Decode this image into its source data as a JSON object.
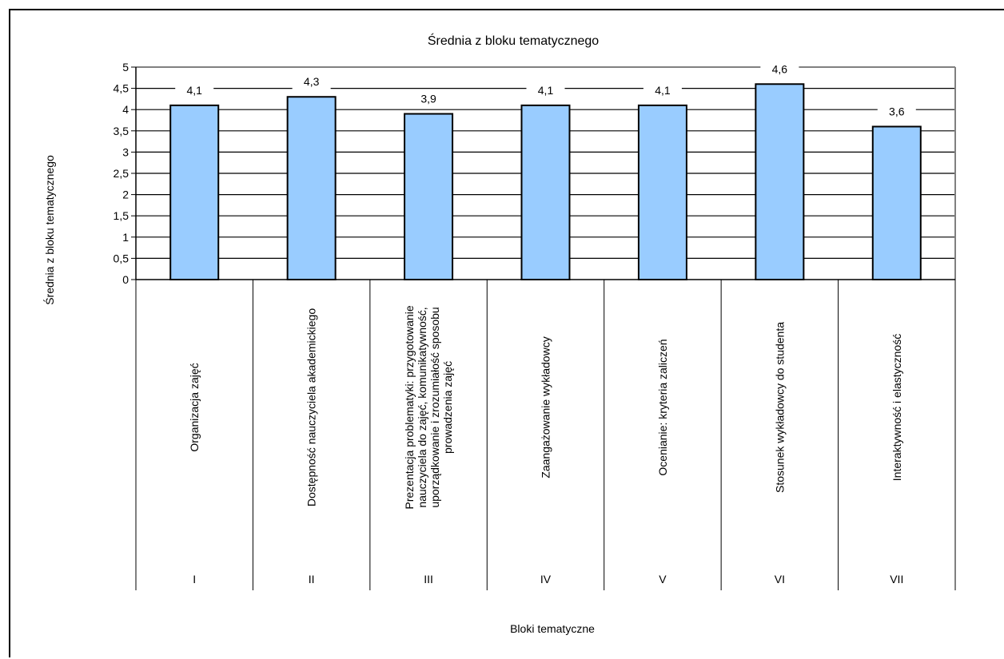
{
  "chart_data": {
    "type": "bar",
    "title": "Średnia z bloku tematycznego",
    "xlabel": "Bloki tematyczne",
    "ylabel": "Średnia z bloku tematycznego",
    "ylim": [
      0,
      5
    ],
    "ytick_step": 0.5,
    "ytick_labels": [
      "0",
      "0,5",
      "1",
      "1,5",
      "2",
      "2,5",
      "3",
      "3,5",
      "4",
      "4,5",
      "5"
    ],
    "grid": true,
    "legend": "none",
    "bar_color": "#99ccff",
    "categories": [
      {
        "lines": [
          "Organizacja zajęć"
        ],
        "code": "I"
      },
      {
        "lines": [
          "Dostępność nauczyciela akademickiego"
        ],
        "code": "II"
      },
      {
        "lines": [
          "Prezentacja problematyki: przygotowanie",
          "nauczyciela do zajęć, komunikatywność,",
          "uporządkowanie i zrozumiałość sposobu",
          "prowadzenia zajęć"
        ],
        "code": "III"
      },
      {
        "lines": [
          "Zaangażowanie wykładowcy"
        ],
        "code": "IV"
      },
      {
        "lines": [
          "Ocenianie: kryteria zaliczeń"
        ],
        "code": "V"
      },
      {
        "lines": [
          "Stosunek wykładowcy do studenta"
        ],
        "code": "VI"
      },
      {
        "lines": [
          "Interaktywność i elastyczność"
        ],
        "code": "VII"
      }
    ],
    "values": [
      4.1,
      4.3,
      3.9,
      4.1,
      4.1,
      4.6,
      3.6
    ],
    "data_labels": [
      "4,1",
      "4,3",
      "3,9",
      "4,1",
      "4,1",
      "4,6",
      "3,6"
    ]
  }
}
